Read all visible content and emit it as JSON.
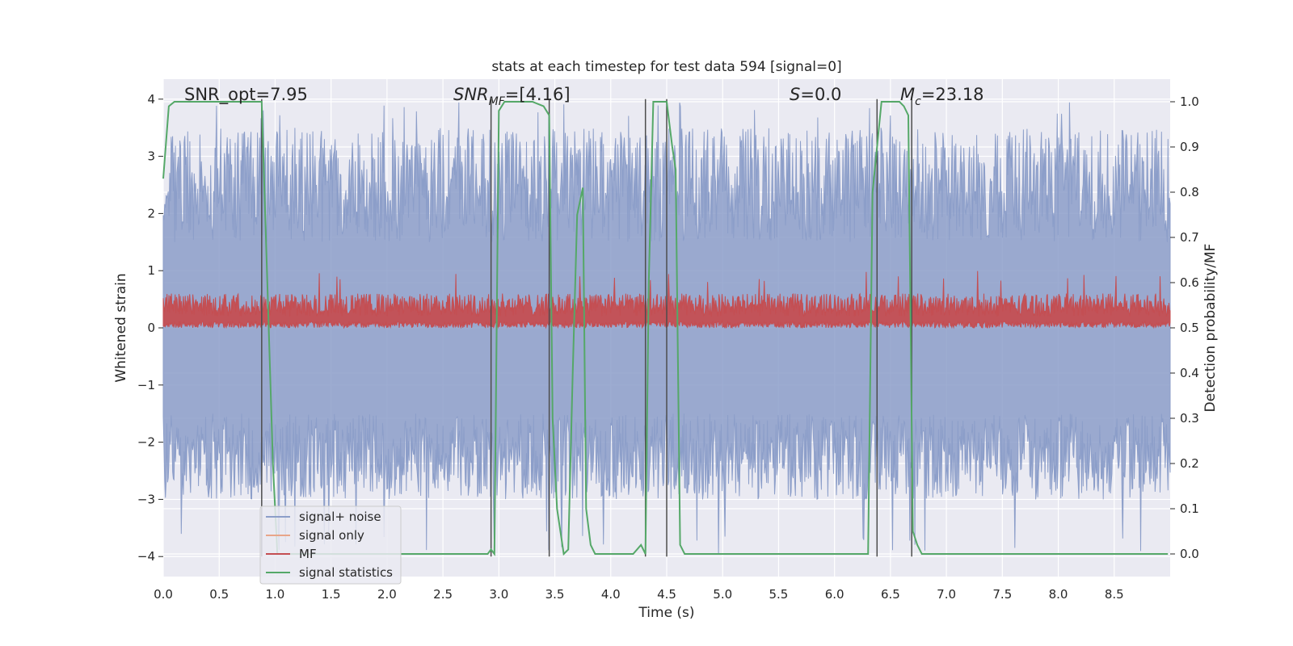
{
  "chart_data": {
    "type": "line",
    "title": "stats at each timestep for test data 594 [signal=0]",
    "xlabel": "Time (s)",
    "ylabel": "Whitened strain",
    "y2label": "Detection probability/MF",
    "xlim": [
      0,
      9
    ],
    "ylim": [
      -4.35,
      4.35
    ],
    "y2lim": [
      -0.05,
      1.05
    ],
    "xticks": [
      "0.0",
      "0.5",
      "1.0",
      "1.5",
      "2.0",
      "2.5",
      "3.0",
      "3.5",
      "4.0",
      "4.5",
      "5.0",
      "5.5",
      "6.0",
      "6.5",
      "7.0",
      "7.5",
      "8.0",
      "8.5"
    ],
    "xtick_values": [
      0,
      0.5,
      1,
      1.5,
      2,
      2.5,
      3,
      3.5,
      4,
      4.5,
      5,
      5.5,
      6,
      6.5,
      7,
      7.5,
      8,
      8.5
    ],
    "yticks": [
      "4",
      "3",
      "2",
      "1",
      "0",
      "−1",
      "−2",
      "−3",
      "−4"
    ],
    "ytick_values": [
      4,
      3,
      2,
      1,
      0,
      -1,
      -2,
      -3,
      -4
    ],
    "y2ticks": [
      "1.0",
      "0.9",
      "0.8",
      "0.7",
      "0.6",
      "0.5",
      "0.4",
      "0.3",
      "0.2",
      "0.1",
      "0.0"
    ],
    "y2tick_values": [
      1.0,
      0.9,
      0.8,
      0.7,
      0.6,
      0.5,
      0.4,
      0.3,
      0.2,
      0.1,
      0.0
    ],
    "grid": true,
    "legend_placement": "lower-left",
    "annotations": {
      "snr_opt": "SNR_opt=7.95",
      "snr_mf_main": "SNR",
      "snr_mf_sub": "MF",
      "snr_mf_rest": "=[4.16]",
      "s_main": "S",
      "s_rest": "=0.0",
      "mc_main": "M",
      "mc_sub": "c",
      "mc_rest": "=23.18"
    },
    "series": [
      {
        "name": "signal+ noise",
        "color": "#8c9ec9",
        "style": "noise band",
        "envelope": {
          "positive_typical_range": [
            1.5,
            3.5
          ],
          "positive_max": 3.95,
          "negative_typical_range": [
            -1.5,
            -3.0
          ],
          "negative_min": -3.95
        }
      },
      {
        "name": "signal only",
        "color": "#e8a589",
        "values": []
      },
      {
        "name": "MF",
        "color": "#c44e52",
        "style": "noise band",
        "envelope": {
          "min": 0.0,
          "typical_max": 0.6,
          "max": 1.0
        }
      },
      {
        "name": "signal statistics",
        "color": "#55a868",
        "axis": "right",
        "x": [
          0.0,
          0.05,
          0.1,
          0.15,
          0.2,
          0.3,
          0.5,
          0.7,
          0.8,
          0.88,
          0.93,
          0.98,
          1.02,
          1.05,
          1.1,
          1.5,
          2.0,
          2.5,
          2.9,
          2.93,
          2.96,
          2.98,
          3.0,
          3.05,
          3.1,
          3.2,
          3.3,
          3.4,
          3.45,
          3.48,
          3.52,
          3.58,
          3.62,
          3.66,
          3.7,
          3.75,
          3.78,
          3.82,
          3.86,
          3.95,
          4.2,
          4.27,
          4.31,
          4.34,
          4.38,
          4.42,
          4.46,
          4.5,
          4.55,
          4.58,
          4.62,
          4.66,
          4.75,
          5.0,
          6.0,
          6.3,
          6.34,
          6.38,
          6.42,
          6.46,
          6.5,
          6.58,
          6.62,
          6.66,
          6.7,
          6.74,
          6.78,
          6.82,
          7.0,
          8.0,
          8.98
        ],
        "values": [
          0.83,
          0.99,
          1.0,
          1.0,
          1.0,
          1.0,
          1.0,
          1.0,
          1.0,
          1.0,
          0.6,
          0.2,
          0.0,
          0.0,
          0.0,
          0.0,
          0.0,
          0.0,
          0.0,
          0.01,
          0.0,
          0.5,
          0.98,
          1.0,
          1.0,
          1.0,
          1.0,
          0.99,
          0.97,
          0.3,
          0.1,
          0.0,
          0.01,
          0.4,
          0.75,
          0.81,
          0.1,
          0.02,
          0.0,
          0.0,
          0.0,
          0.02,
          0.0,
          0.6,
          1.0,
          1.0,
          1.0,
          1.0,
          0.9,
          0.85,
          0.02,
          0.0,
          0.0,
          0.0,
          0.0,
          0.0,
          0.8,
          0.9,
          1.0,
          1.0,
          1.0,
          1.0,
          0.99,
          0.97,
          0.05,
          0.02,
          0.0,
          0.0,
          0.0,
          0.0,
          0.0
        ]
      }
    ],
    "vertical_lines": {
      "color": "#4d4d4d",
      "x": [
        0.88,
        2.93,
        3.45,
        4.31,
        4.5,
        6.38,
        6.69
      ],
      "y_range": [
        -4.0,
        4.0
      ]
    }
  }
}
